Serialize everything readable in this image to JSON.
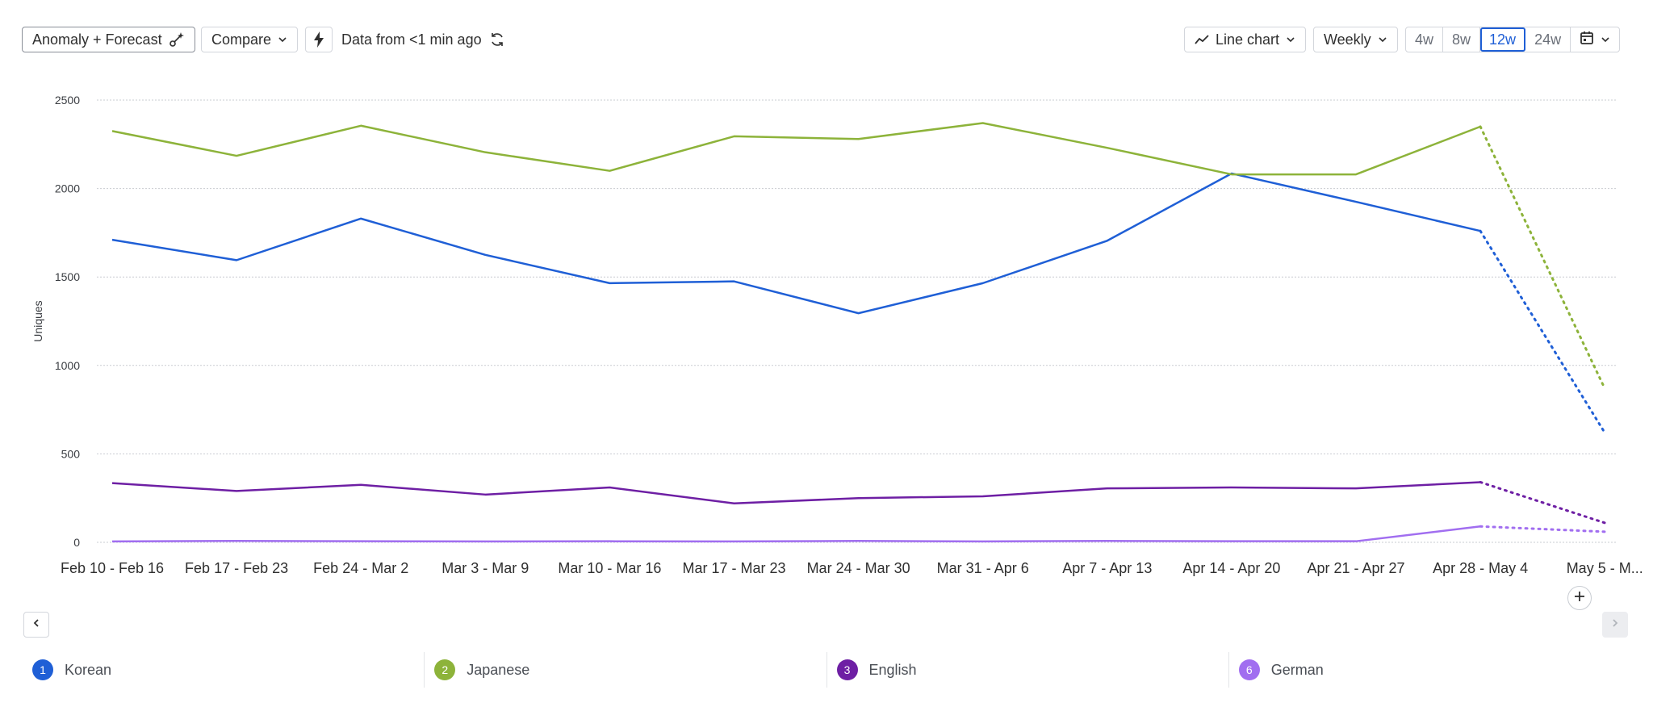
{
  "toolbar": {
    "anomaly_label": "Anomaly + Forecast",
    "compare_label": "Compare",
    "data_freshness": "Data from <1 min ago",
    "chart_type_label": "Line chart",
    "interval_label": "Weekly",
    "ranges": [
      "4w",
      "8w",
      "12w",
      "24w"
    ],
    "active_range": "12w"
  },
  "legend": [
    {
      "index": "1",
      "label": "Korean",
      "color": "#1f5fd6"
    },
    {
      "index": "2",
      "label": "Japanese",
      "color": "#8db33a"
    },
    {
      "index": "3",
      "label": "English",
      "color": "#6e1fa4"
    },
    {
      "index": "6",
      "label": "German",
      "color": "#a16ef0"
    }
  ],
  "chart_data": {
    "type": "line",
    "ylabel": "Uniques",
    "ylim": [
      0,
      2500
    ],
    "yticks": [
      0,
      500,
      1000,
      1500,
      2000,
      2500
    ],
    "grid": true,
    "categories": [
      "Feb 10 - Feb 16",
      "Feb 17 - Feb 23",
      "Feb 24 - Mar 2",
      "Mar 3 - Mar 9",
      "Mar 10 - Mar 16",
      "Mar 17 - Mar 23",
      "Mar 24 - Mar 30",
      "Mar 31 - Apr 6",
      "Apr 7 - Apr 13",
      "Apr 14 - Apr 20",
      "Apr 21 - Apr 27",
      "Apr 28 - May 4",
      "May 5 - M..."
    ],
    "forecast_from_index": 11,
    "series": [
      {
        "name": "Korean",
        "color": "#1f5fd6",
        "values": [
          1710,
          1595,
          1830,
          1625,
          1465,
          1475,
          1295,
          1465,
          1705,
          2085,
          1925,
          1760,
          620
        ]
      },
      {
        "name": "Japanese",
        "color": "#8db33a",
        "values": [
          2325,
          2185,
          2355,
          2205,
          2100,
          2295,
          2280,
          2370,
          2230,
          2080,
          2080,
          2350,
          870
        ]
      },
      {
        "name": "English",
        "color": "#6e1fa4",
        "values": [
          335,
          290,
          325,
          270,
          310,
          220,
          250,
          260,
          305,
          310,
          305,
          340,
          110
        ]
      },
      {
        "name": "German",
        "color": "#a16ef0",
        "values": [
          5,
          8,
          6,
          5,
          6,
          5,
          8,
          5,
          8,
          6,
          6,
          90,
          60
        ]
      }
    ]
  }
}
